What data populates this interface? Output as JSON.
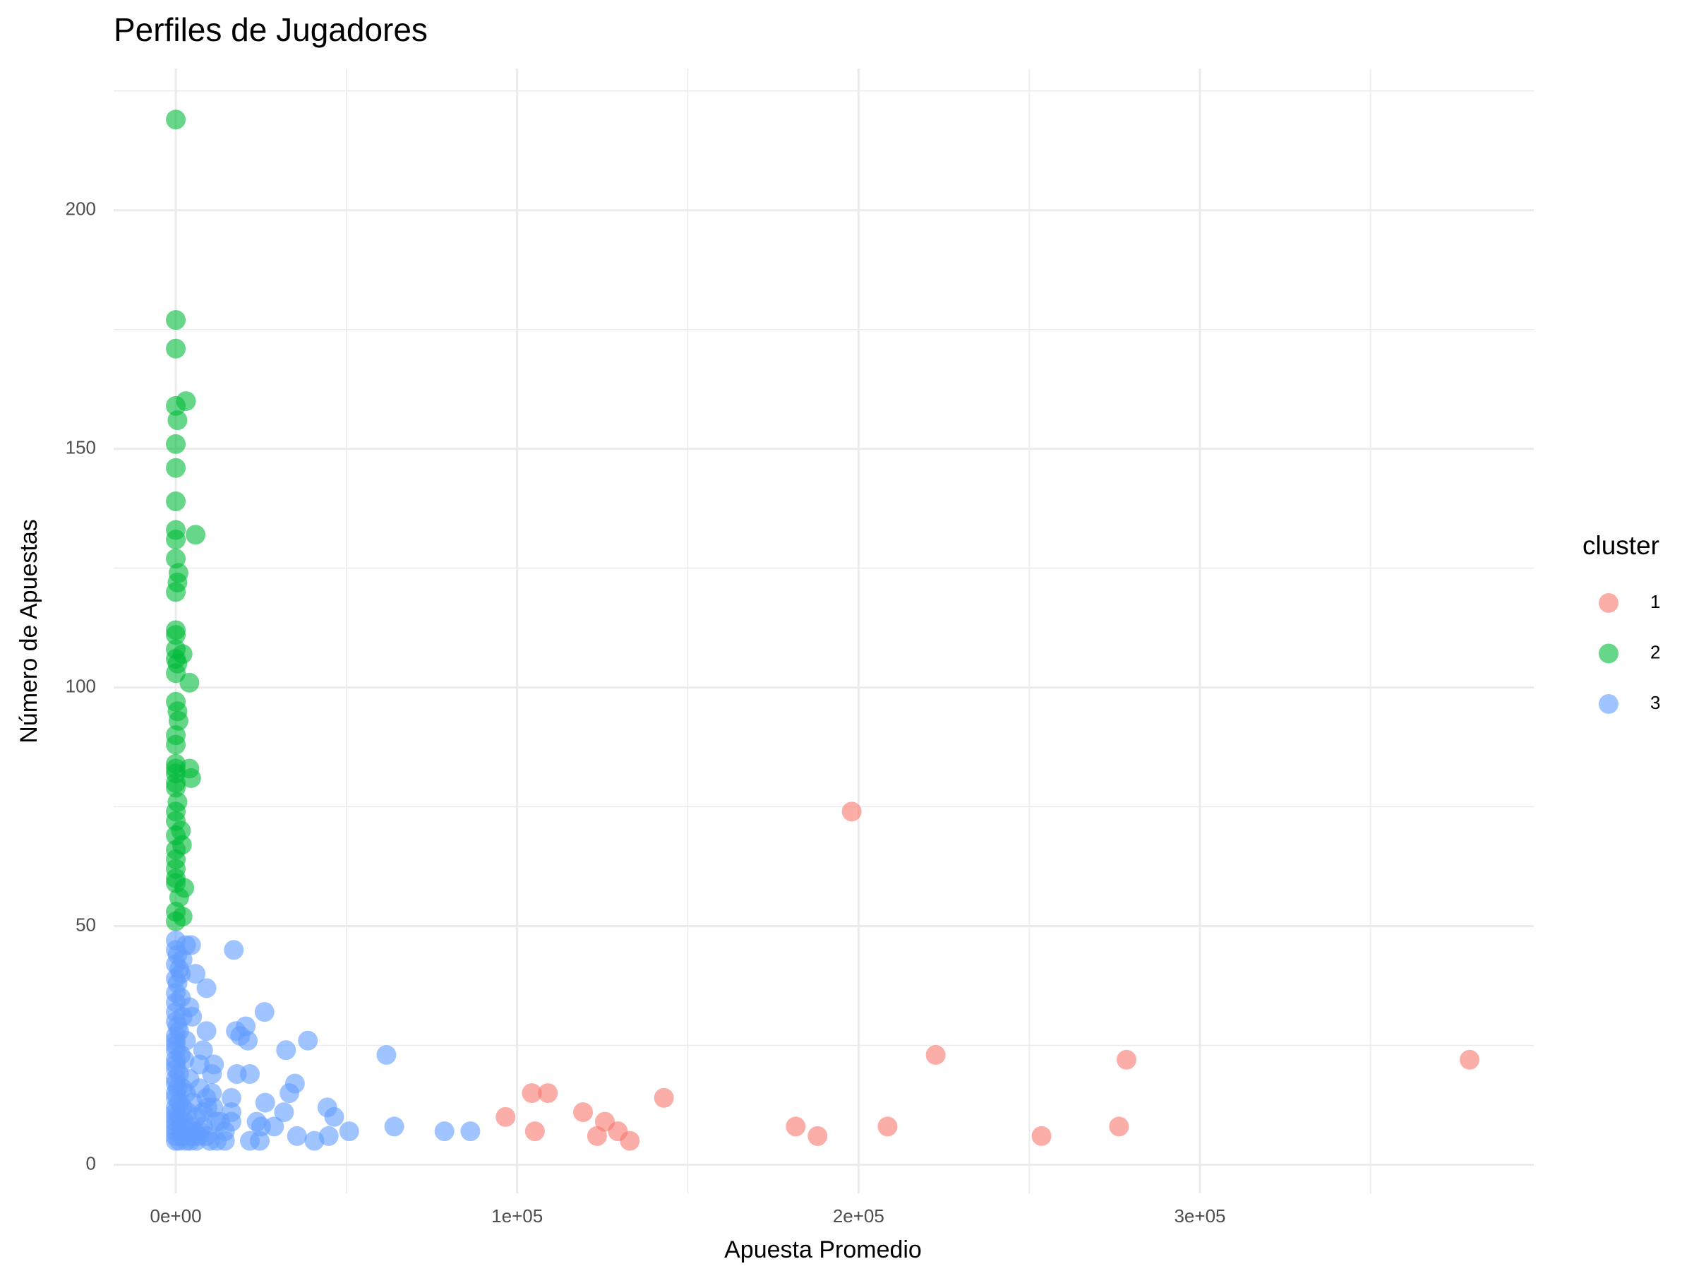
{
  "chart_data": {
    "type": "scatter",
    "title": "Perfiles de Jugadores",
    "x_label": "Apuesta Promedio",
    "y_label": "Número de Apuestas",
    "legend_title": "cluster",
    "legend_position": "right",
    "grid": true,
    "xlim": [
      -18200,
      397800
    ],
    "ylim": [
      -6,
      229.7
    ],
    "xticks": [
      {
        "value": 0,
        "label": "0e+00"
      },
      {
        "value": 100000,
        "label": "1e+05"
      },
      {
        "value": 200000,
        "label": "2e+05"
      },
      {
        "value": 300000,
        "label": "3e+05"
      }
    ],
    "yticks": [
      0,
      50,
      100,
      150,
      200
    ],
    "x_minor_ticks": [
      50000,
      150000,
      250000,
      350000
    ],
    "y_minor_ticks": [
      25,
      75,
      125,
      175,
      225
    ],
    "series": [
      {
        "name": "1",
        "color": "#F8766D",
        "x": [
          198000,
          222600,
          278500,
          379000,
          96600,
          104300,
          109000,
          105200,
          119300,
          125700,
          123400,
          129500,
          133000,
          143000,
          181600,
          188000,
          208500,
          253600,
          276300
        ],
        "values": [
          74,
          23,
          22,
          22,
          10,
          15,
          15,
          7,
          11,
          9,
          6,
          7,
          5,
          14,
          8,
          6,
          8,
          6,
          8
        ]
      },
      {
        "name": "2",
        "color": "#00BA38",
        "x": [
          0,
          0,
          0,
          3000,
          0,
          500,
          0,
          0,
          0,
          0,
          0,
          5800,
          0,
          800,
          500,
          0,
          0,
          0,
          0,
          2000,
          0,
          500,
          0,
          4000,
          0,
          500,
          800,
          0,
          0,
          0,
          0,
          4000,
          0,
          4500,
          0,
          0,
          500,
          0,
          0,
          1500,
          0,
          1800,
          0,
          0,
          0,
          0,
          2500,
          0,
          1000,
          0,
          2000,
          0
        ],
        "values": [
          219,
          177,
          171,
          160,
          159,
          156,
          151,
          146,
          139,
          133,
          131,
          132,
          127,
          124,
          122,
          120,
          112,
          111,
          108,
          107,
          106,
          105,
          103,
          101,
          97,
          95,
          93,
          90,
          88,
          84,
          83,
          83,
          82,
          81,
          80,
          79,
          76,
          74,
          72,
          70,
          69,
          67,
          66,
          64,
          62,
          60,
          58,
          59,
          56,
          53,
          52,
          51
        ]
      },
      {
        "name": "3",
        "color": "#619CFF",
        "x": [
          17000,
          26000,
          38700,
          32300,
          61700,
          20500,
          17600,
          18900,
          21100,
          9000,
          5800,
          4500,
          9000,
          17900,
          21700,
          34900,
          33300,
          26200,
          44400,
          46400,
          31700,
          28800,
          23700,
          25000,
          50800,
          64000,
          78700,
          86300,
          35500,
          44800,
          40600,
          21700,
          24600,
          16300,
          16300,
          16300,
          11200,
          10600,
          10600,
          14400,
          14400,
          11800,
          9300,
          8000,
          7000,
          4800,
          5400,
          6700,
          4200,
          0,
          0,
          500,
          0,
          1000,
          0,
          500,
          0,
          1500,
          0,
          0,
          2000,
          0,
          500,
          1000,
          0,
          0,
          3000,
          0,
          0,
          1500,
          0,
          2500,
          0,
          0,
          1000,
          0,
          4000,
          0,
          500,
          2000,
          0,
          3000,
          0,
          1000,
          5000,
          0,
          2000,
          0,
          3500,
          0,
          1000,
          6000,
          0,
          2500,
          0,
          1500,
          4500,
          8000,
          0,
          3000,
          7000,
          0,
          2000,
          5000,
          9000,
          0,
          1000,
          3000,
          6000,
          10000,
          12000,
          2000,
          3000,
          1500,
          4000,
          7000,
          9000,
          11000,
          8000,
          13000
        ],
        "values": [
          45,
          32,
          26,
          24,
          23,
          29,
          28,
          27,
          26,
          37,
          40,
          46,
          28,
          19,
          19,
          17,
          15,
          13,
          12,
          10,
          11,
          8,
          9,
          8,
          7,
          8,
          7,
          7,
          6,
          6,
          5,
          5,
          5,
          9,
          14,
          11,
          21,
          19,
          15,
          7,
          5,
          9,
          12,
          24,
          21,
          31,
          7,
          6,
          5,
          47,
          45,
          44,
          42,
          41,
          39,
          38,
          36,
          35,
          34,
          32,
          31,
          30,
          29,
          28,
          27,
          26,
          26,
          25,
          24,
          23,
          22,
          22,
          21,
          20,
          19,
          18,
          18,
          17,
          16,
          16,
          15,
          15,
          14,
          13,
          13,
          12,
          12,
          11,
          11,
          10,
          10,
          10,
          9,
          9,
          8,
          8,
          8,
          8,
          7,
          7,
          7,
          6,
          6,
          6,
          6,
          5,
          5,
          5,
          5,
          5,
          5,
          43,
          46,
          40,
          33,
          16,
          14,
          12,
          11,
          9
        ]
      }
    ]
  }
}
